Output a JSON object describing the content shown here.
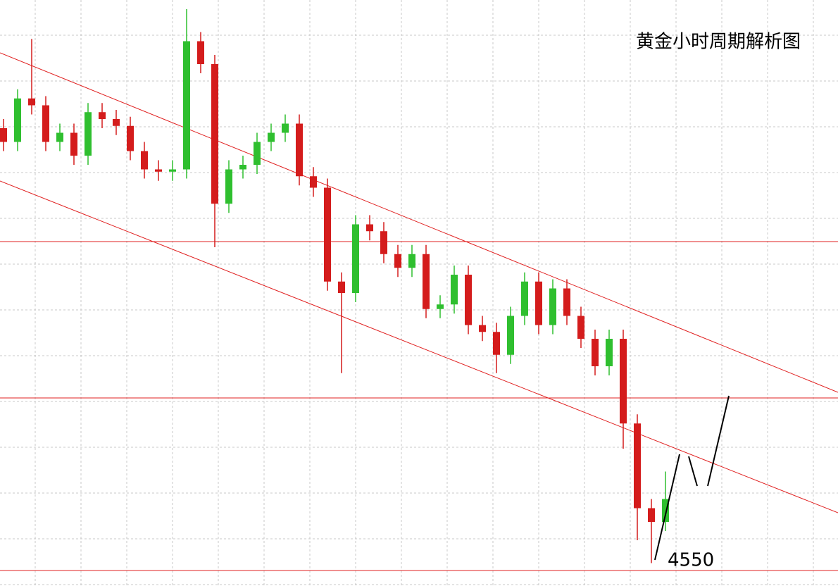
{
  "chart_data": {
    "type": "candlestick",
    "title": "黄金小时周期解析图",
    "annotation": "4550",
    "ylim": [
      4540,
      4796
    ],
    "up_color": "#2fbf2f",
    "down_color": "#d41c1c",
    "categories": [
      null,
      null,
      null,
      null,
      null,
      null,
      null,
      null,
      null,
      null,
      null,
      null,
      null,
      null,
      null,
      null,
      null,
      null,
      null,
      null,
      null,
      null,
      null,
      null,
      null,
      null,
      null,
      null,
      null,
      null,
      null,
      null,
      null,
      null,
      null,
      null,
      null,
      null,
      null,
      null,
      null,
      null,
      null,
      null,
      null,
      null,
      null,
      null
    ],
    "open": [
      4740,
      4734,
      4753,
      4750,
      4734,
      4738,
      4728,
      4747,
      4744,
      4741,
      4730,
      4722,
      4721,
      4722,
      4778,
      4768,
      4707,
      4722,
      4724,
      4734,
      4738,
      4742,
      4719,
      4714,
      4673,
      4668,
      4698,
      4695,
      4685,
      4679,
      4685,
      4661,
      4663,
      4676,
      4654,
      4651,
      4641,
      4658,
      4673,
      4654,
      4670,
      4658,
      4648,
      4636,
      4648,
      4611,
      4574,
      4568
    ],
    "high": [
      4744,
      4757,
      4779,
      4754,
      4742,
      4742,
      4751,
      4751,
      4748,
      4745,
      4734,
      4726,
      4726,
      4792,
      4782,
      4772,
      4726,
      4728,
      4738,
      4742,
      4746,
      4746,
      4723,
      4718,
      4677,
      4702,
      4702,
      4699,
      4689,
      4689,
      4689,
      4667,
      4680,
      4680,
      4658,
      4655,
      4662,
      4677,
      4677,
      4674,
      4674,
      4662,
      4652,
      4652,
      4652,
      4615,
      4578,
      4590
    ],
    "low": [
      4730,
      4730,
      4746,
      4730,
      4730,
      4724,
      4724,
      4740,
      4737,
      4726,
      4718,
      4717,
      4717,
      4718,
      4764,
      4688,
      4703,
      4718,
      4720,
      4730,
      4734,
      4715,
      4710,
      4669,
      4633,
      4664,
      4691,
      4681,
      4675,
      4675,
      4657,
      4657,
      4659,
      4650,
      4647,
      4633,
      4637,
      4654,
      4650,
      4650,
      4654,
      4644,
      4632,
      4632,
      4600,
      4560,
      4550,
      4564
    ],
    "close": [
      4734,
      4753,
      4750,
      4734,
      4738,
      4728,
      4747,
      4744,
      4741,
      4730,
      4722,
      4721,
      4722,
      4778,
      4768,
      4707,
      4722,
      4724,
      4734,
      4738,
      4742,
      4719,
      4714,
      4673,
      4668,
      4698,
      4695,
      4685,
      4679,
      4685,
      4661,
      4663,
      4676,
      4654,
      4651,
      4641,
      4658,
      4673,
      4654,
      4670,
      4658,
      4648,
      4636,
      4648,
      4611,
      4574,
      4568,
      4578
    ]
  }
}
